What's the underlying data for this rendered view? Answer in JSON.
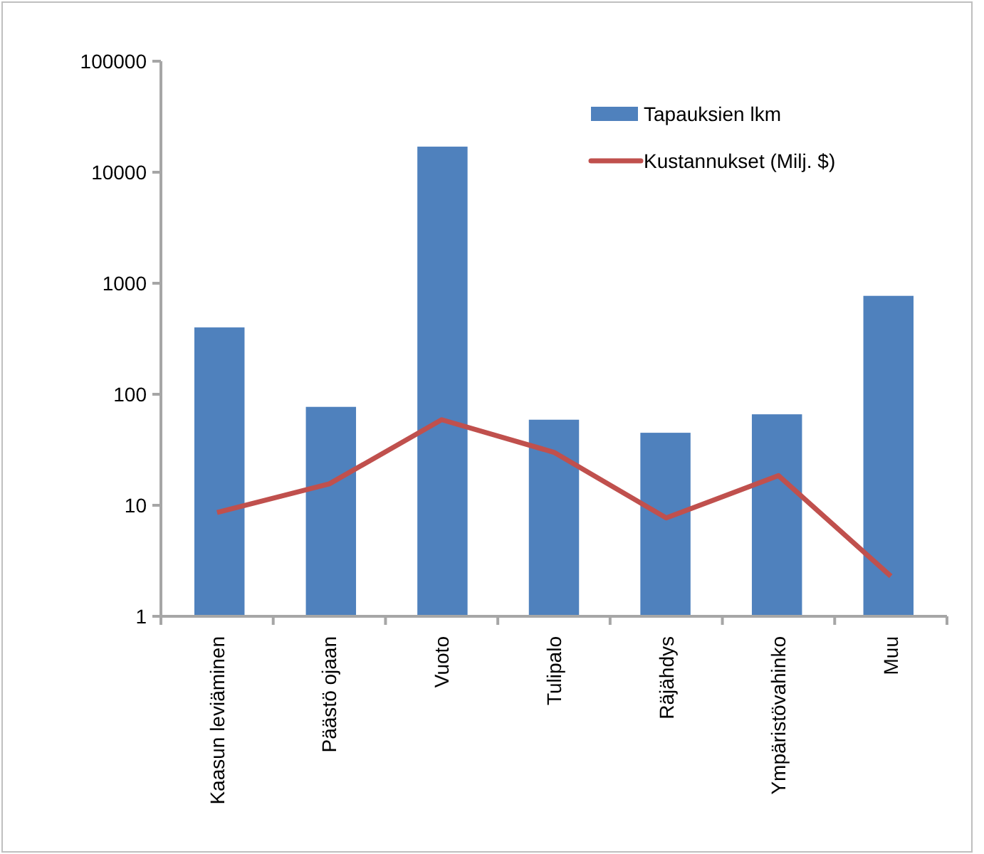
{
  "chart_data": {
    "type": "bar",
    "categories": [
      "Kaasun leviäminen",
      "Päästö ojaan",
      "Vuoto",
      "Tulipalo",
      "Räjähdys",
      "Ympäristövahinko",
      "Muu"
    ],
    "series": [
      {
        "name": "Tapauksien lkm",
        "color": "#4f81bd",
        "values": [
          400,
          77,
          17000,
          59,
          45,
          66,
          770
        ]
      },
      {
        "name": "Kustannukset (Milj. $)",
        "type": "line",
        "color": "#c0504d",
        "values": [
          8.6,
          15.6,
          59,
          30,
          7.7,
          18.5,
          2.3
        ]
      }
    ],
    "log": true,
    "ylim": [
      1,
      100000
    ],
    "yticks": [
      1,
      10,
      100,
      1000,
      10000,
      100000
    ],
    "legend": "top right",
    "grid": false
  }
}
